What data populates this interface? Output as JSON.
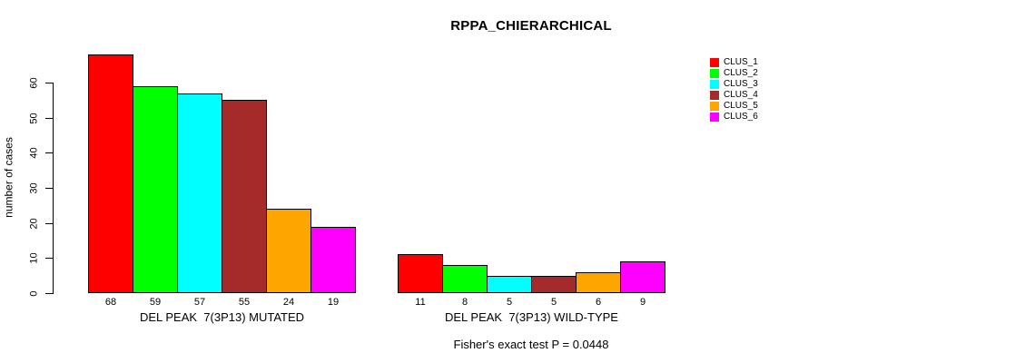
{
  "chart_data": {
    "type": "bar",
    "title": "RPPA_CHIERARCHICAL",
    "ylabel": "number of cases",
    "ylim": [
      0,
      60
    ],
    "yticks": [
      "0",
      "10",
      "20",
      "30",
      "40",
      "50",
      "60"
    ],
    "grid": false,
    "legend_position": "right",
    "legend": [
      {
        "label": "CLUS_1",
        "color": "#FF0000"
      },
      {
        "label": "CLUS_2",
        "color": "#00FF00"
      },
      {
        "label": "CLUS_3",
        "color": "#00FFFF"
      },
      {
        "label": "CLUS_4",
        "color": "#A52A2A"
      },
      {
        "label": "CLUS_5",
        "color": "#FFA500"
      },
      {
        "label": "CLUS_6",
        "color": "#FF00FF"
      }
    ],
    "series_colors": [
      "#FF0000",
      "#00FF00",
      "#00FFFF",
      "#A52A2A",
      "#FFA500",
      "#FF00FF"
    ],
    "groups": [
      {
        "label": "DEL PEAK  7(3P13) MUTATED",
        "values": [
          68,
          59,
          57,
          55,
          24,
          19
        ]
      },
      {
        "label": "DEL PEAK  7(3P13) WILD-TYPE",
        "values": [
          11,
          8,
          5,
          5,
          6,
          9
        ]
      }
    ],
    "footnote": "Fisher's exact test P = 0.0448"
  }
}
